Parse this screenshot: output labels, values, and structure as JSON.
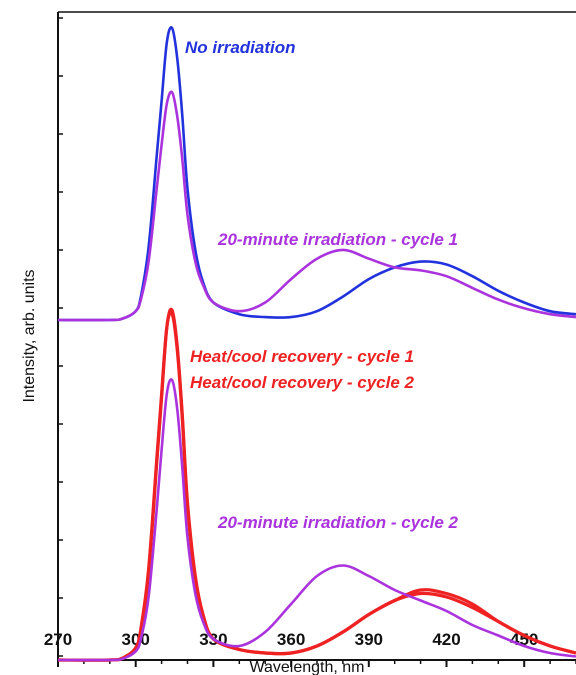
{
  "chart_data": {
    "type": "line",
    "xlabel": "Wavelength, nm",
    "ylabel": "Intensity, arb. units",
    "xlim": [
      270,
      470
    ],
    "xticks": [
      270,
      300,
      330,
      360,
      390,
      420,
      450
    ],
    "tick_labels": [
      "270",
      "300",
      "330",
      "360",
      "390",
      "420",
      "450"
    ],
    "ylim": [
      0,
      1
    ],
    "grid": false,
    "legend": "inline labels",
    "groups": [
      {
        "name": "top",
        "series": [
          {
            "name": "No irradiation",
            "color": "#2233dd",
            "x": [
              270,
              290,
              295,
              300,
              302,
              305,
              308,
              310,
              312,
              314,
              316,
              318,
              320,
              323,
              326,
              330,
              340,
              350,
              360,
              370,
              380,
              390,
              400,
              410,
              420,
              430,
              440,
              450,
              460,
              470
            ],
            "y": [
              0,
              0,
              0.005,
              0.03,
              0.08,
              0.25,
              0.55,
              0.75,
              0.95,
              1.0,
              0.9,
              0.7,
              0.45,
              0.24,
              0.13,
              0.06,
              0.02,
              0.01,
              0.01,
              0.03,
              0.08,
              0.14,
              0.18,
              0.2,
              0.19,
              0.15,
              0.1,
              0.06,
              0.03,
              0.02
            ]
          },
          {
            "name": "20-minute irradiation - cycle 1",
            "color": "#aa33dd",
            "x": [
              270,
              290,
              295,
              300,
              302,
              305,
              308,
              310,
              312,
              314,
              316,
              318,
              320,
              323,
              326,
              330,
              340,
              350,
              360,
              370,
              380,
              390,
              400,
              410,
              420,
              430,
              440,
              450,
              460,
              470
            ],
            "y": [
              0,
              0,
              0.005,
              0.03,
              0.07,
              0.2,
              0.44,
              0.6,
              0.74,
              0.78,
              0.7,
              0.55,
              0.36,
              0.2,
              0.12,
              0.06,
              0.03,
              0.06,
              0.14,
              0.21,
              0.24,
              0.21,
              0.18,
              0.17,
              0.15,
              0.11,
              0.07,
              0.04,
              0.02,
              0.01
            ]
          }
        ]
      },
      {
        "name": "bottom",
        "series": [
          {
            "name": "Heat/cool recovery - cycle 1",
            "color": "#ee2222",
            "x": [
              270,
              290,
              295,
              300,
              302,
              305,
              308,
              310,
              312,
              314,
              316,
              318,
              320,
              323,
              326,
              330,
              340,
              350,
              360,
              370,
              380,
              390,
              400,
              410,
              420,
              430,
              440,
              450,
              460,
              470
            ],
            "y": [
              0,
              0,
              0.005,
              0.03,
              0.08,
              0.25,
              0.55,
              0.75,
              0.95,
              1.0,
              0.9,
              0.7,
              0.45,
              0.24,
              0.13,
              0.06,
              0.03,
              0.02,
              0.02,
              0.04,
              0.08,
              0.13,
              0.17,
              0.2,
              0.19,
              0.16,
              0.11,
              0.07,
              0.04,
              0.02
            ]
          },
          {
            "name": "Heat/cool recovery - cycle 2",
            "color": "#ee2222",
            "x": [
              270,
              290,
              295,
              300,
              302,
              305,
              308,
              310,
              312,
              314,
              316,
              318,
              320,
              323,
              326,
              330,
              340,
              350,
              360,
              370,
              380,
              390,
              400,
              410,
              420,
              430,
              440,
              450,
              460,
              470
            ],
            "y": [
              0,
              0,
              0.006,
              0.035,
              0.09,
              0.26,
              0.56,
              0.76,
              0.95,
              0.99,
              0.89,
              0.69,
              0.44,
              0.23,
              0.12,
              0.06,
              0.03,
              0.02,
              0.02,
              0.04,
              0.08,
              0.13,
              0.17,
              0.19,
              0.18,
              0.15,
              0.11,
              0.07,
              0.04,
              0.02
            ]
          },
          {
            "name": "20-minute irradiation - cycle 2",
            "color": "#aa33dd",
            "x": [
              270,
              290,
              295,
              300,
              302,
              305,
              308,
              310,
              312,
              314,
              316,
              318,
              320,
              323,
              326,
              330,
              340,
              350,
              360,
              370,
              380,
              390,
              400,
              410,
              420,
              430,
              440,
              450,
              460,
              470
            ],
            "y": [
              0,
              0,
              0.004,
              0.025,
              0.06,
              0.18,
              0.42,
              0.6,
              0.76,
              0.8,
              0.72,
              0.55,
              0.35,
              0.19,
              0.11,
              0.06,
              0.04,
              0.08,
              0.16,
              0.24,
              0.27,
              0.24,
              0.2,
              0.17,
              0.14,
              0.1,
              0.07,
              0.04,
              0.02,
              0.01
            ]
          }
        ]
      }
    ],
    "labels": [
      {
        "id": "no_irr",
        "text": "No irradiation",
        "color": "#2233dd"
      },
      {
        "id": "irr1",
        "text": "20-minute irradiation - cycle 1",
        "color": "#aa33dd"
      },
      {
        "id": "heat1",
        "text": "Heat/cool recovery - cycle 1",
        "color": "#ee2222"
      },
      {
        "id": "heat2",
        "text": "Heat/cool recovery - cycle 2",
        "color": "#ee2222"
      },
      {
        "id": "irr2",
        "text": "20-minute irradiation - cycle 2",
        "color": "#aa33dd"
      }
    ]
  }
}
